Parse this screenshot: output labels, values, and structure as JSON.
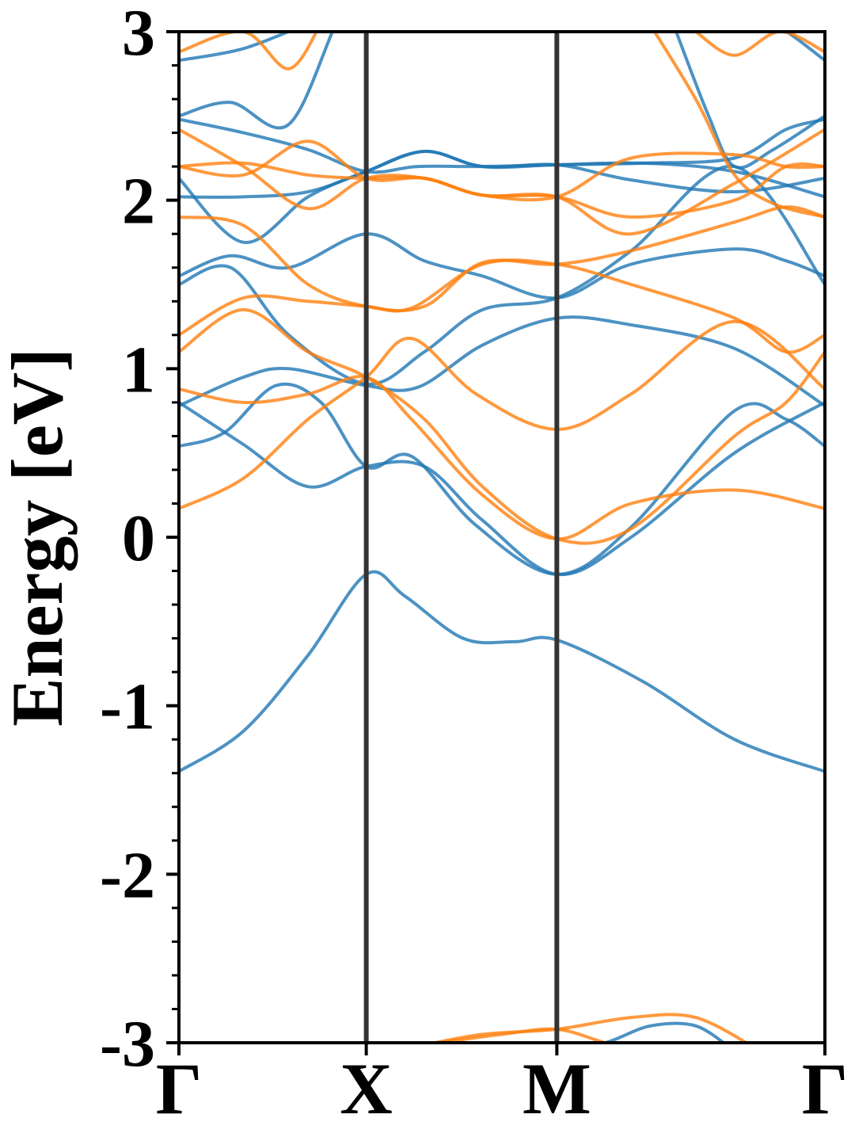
{
  "chart_data": {
    "type": "line",
    "title": "",
    "xlabel": "",
    "ylabel": "Energy [eV]",
    "ylim": [
      -3,
      3
    ],
    "yticks": [
      {
        "value": 3,
        "label": "3"
      },
      {
        "value": 2,
        "label": "2"
      },
      {
        "value": 1,
        "label": "1"
      },
      {
        "value": 0,
        "label": "0"
      },
      {
        "value": -1,
        "label": "-1"
      },
      {
        "value": -2,
        "label": "-2"
      },
      {
        "value": -3,
        "label": "-3"
      }
    ],
    "ytick_minor_step": 0.2,
    "kpath": [
      {
        "label": "Γ",
        "k": 0.0
      },
      {
        "label": "X",
        "k": 0.29
      },
      {
        "label": "M",
        "k": 0.585
      },
      {
        "label": "Γ",
        "k": 1.0
      }
    ],
    "grid": false,
    "series": [
      {
        "color": "#1f77b4",
        "bands": [
          [
            [
              0,
              -1.39
            ],
            [
              0.1,
              -1.15
            ],
            [
              0.2,
              -0.7
            ],
            [
              0.29,
              -0.22
            ],
            [
              0.35,
              -0.35
            ],
            [
              0.44,
              -0.6
            ],
            [
              0.52,
              -0.62
            ],
            [
              0.585,
              -0.61
            ],
            [
              0.72,
              -0.86
            ],
            [
              0.86,
              -1.2
            ],
            [
              1,
              -1.39
            ]
          ],
          [
            [
              0,
              0.54
            ],
            [
              0.07,
              0.62
            ],
            [
              0.15,
              0.9
            ],
            [
              0.22,
              0.8
            ],
            [
              0.29,
              0.42
            ],
            [
              0.36,
              0.48
            ],
            [
              0.46,
              0.07
            ],
            [
              0.585,
              -0.22
            ],
            [
              0.7,
              0.06
            ],
            [
              0.86,
              0.75
            ],
            [
              0.94,
              0.7
            ],
            [
              1,
              0.54
            ]
          ],
          [
            [
              0,
              0.8
            ],
            [
              0.1,
              0.55
            ],
            [
              0.2,
              0.3
            ],
            [
              0.29,
              0.42
            ],
            [
              0.38,
              0.42
            ],
            [
              0.47,
              0.1
            ],
            [
              0.585,
              -0.22
            ],
            [
              0.7,
              0.0
            ],
            [
              0.86,
              0.5
            ],
            [
              1,
              0.8
            ]
          ],
          [
            [
              0,
              0.78
            ],
            [
              0.1,
              0.95
            ],
            [
              0.17,
              1.0
            ],
            [
              0.29,
              0.9
            ],
            [
              0.37,
              0.89
            ],
            [
              0.47,
              1.14
            ],
            [
              0.585,
              1.3
            ],
            [
              0.7,
              1.26
            ],
            [
              0.86,
              1.12
            ],
            [
              1,
              0.78
            ]
          ],
          [
            [
              0,
              1.5
            ],
            [
              0.08,
              1.6
            ],
            [
              0.17,
              1.2
            ],
            [
              0.29,
              0.91
            ],
            [
              0.38,
              1.1
            ],
            [
              0.47,
              1.35
            ],
            [
              0.585,
              1.42
            ],
            [
              0.7,
              1.7
            ],
            [
              0.86,
              2.2
            ],
            [
              1,
              1.5
            ]
          ],
          [
            [
              0,
              1.55
            ],
            [
              0.08,
              1.67
            ],
            [
              0.17,
              1.6
            ],
            [
              0.29,
              1.8
            ],
            [
              0.38,
              1.64
            ],
            [
              0.47,
              1.55
            ],
            [
              0.585,
              1.42
            ],
            [
              0.7,
              1.62
            ],
            [
              0.86,
              1.71
            ],
            [
              0.94,
              1.64
            ],
            [
              1,
              1.55
            ]
          ],
          [
            [
              0,
              2.13
            ],
            [
              0.1,
              1.75
            ],
            [
              0.2,
              2.02
            ],
            [
              0.29,
              2.17
            ],
            [
              0.38,
              2.29
            ],
            [
              0.47,
              2.2
            ],
            [
              0.585,
              2.21
            ],
            [
              0.7,
              2.12
            ],
            [
              0.86,
              2.05
            ],
            [
              1,
              2.13
            ]
          ],
          [
            [
              0,
              2.02
            ],
            [
              0.1,
              2.02
            ],
            [
              0.2,
              2.05
            ],
            [
              0.29,
              2.17
            ],
            [
              0.38,
              2.29
            ],
            [
              0.47,
              2.2
            ],
            [
              0.585,
              2.21
            ],
            [
              0.72,
              2.22
            ],
            [
              0.86,
              2.17
            ],
            [
              1,
              2.02
            ]
          ],
          [
            [
              0,
              2.48
            ],
            [
              0.1,
              2.4
            ],
            [
              0.2,
              2.3
            ],
            [
              0.29,
              2.17
            ],
            [
              0.37,
              2.2
            ],
            [
              0.47,
              2.2
            ],
            [
              0.585,
              2.21
            ],
            [
              0.72,
              2.22
            ],
            [
              0.86,
              2.25
            ],
            [
              0.94,
              2.42
            ],
            [
              1,
              2.48
            ]
          ],
          [
            [
              0,
              2.5
            ],
            [
              0.08,
              2.58
            ],
            [
              0.17,
              2.45
            ],
            [
              0.25,
              3.1
            ],
            [
              0.3,
              3.3
            ]
          ],
          [
            [
              0,
              2.83
            ],
            [
              0.1,
              2.9
            ],
            [
              0.2,
              3.05
            ]
          ],
          [
            [
              0.76,
              3.1
            ],
            [
              0.82,
              2.5
            ],
            [
              0.86,
              2.2
            ],
            [
              0.92,
              2.3
            ],
            [
              1,
              2.5
            ]
          ],
          [
            [
              0.86,
              3.0
            ],
            [
              0.92,
              3.04
            ],
            [
              1,
              2.83
            ]
          ],
          [
            [
              0.585,
              -3.05
            ],
            [
              0.66,
              -3.0
            ],
            [
              0.73,
              -2.9
            ],
            [
              0.8,
              -2.9
            ],
            [
              0.86,
              -3.05
            ]
          ],
          [
            [
              0.46,
              -3.05
            ],
            [
              0.55,
              -3.0
            ],
            [
              0.62,
              -3.05
            ]
          ]
        ]
      },
      {
        "color": "#ff7f0e",
        "bands": [
          [
            [
              0,
              0.17
            ],
            [
              0.1,
              0.35
            ],
            [
              0.2,
              0.7
            ],
            [
              0.29,
              0.95
            ],
            [
              0.36,
              1.18
            ],
            [
              0.46,
              0.85
            ],
            [
              0.585,
              0.64
            ],
            [
              0.7,
              0.85
            ],
            [
              0.86,
              1.28
            ],
            [
              1,
              0.88
            ]
          ],
          [
            [
              0,
              0.88
            ],
            [
              0.1,
              0.8
            ],
            [
              0.2,
              0.85
            ],
            [
              0.29,
              0.95
            ],
            [
              0.36,
              0.7
            ],
            [
              0.47,
              0.25
            ],
            [
              0.585,
              -0.01
            ],
            [
              0.7,
              0.2
            ],
            [
              0.86,
              0.28
            ],
            [
              1,
              0.17
            ]
          ],
          [
            [
              0,
              1.1
            ],
            [
              0.1,
              1.35
            ],
            [
              0.2,
              1.1
            ],
            [
              0.29,
              0.95
            ],
            [
              0.38,
              0.7
            ],
            [
              0.47,
              0.3
            ],
            [
              0.585,
              -0.01
            ],
            [
              0.7,
              0.05
            ],
            [
              0.86,
              0.6
            ],
            [
              0.94,
              0.8
            ],
            [
              1,
              1.1
            ]
          ],
          [
            [
              0,
              1.2
            ],
            [
              0.1,
              1.42
            ],
            [
              0.2,
              1.4
            ],
            [
              0.29,
              1.37
            ],
            [
              0.36,
              1.36
            ],
            [
              0.47,
              1.62
            ],
            [
              0.585,
              1.62
            ],
            [
              0.7,
              1.5
            ],
            [
              0.86,
              1.3
            ],
            [
              0.94,
              1.1
            ],
            [
              1,
              1.2
            ]
          ],
          [
            [
              0,
              1.9
            ],
            [
              0.1,
              1.85
            ],
            [
              0.2,
              1.5
            ],
            [
              0.29,
              1.37
            ],
            [
              0.38,
              1.37
            ],
            [
              0.47,
              1.63
            ],
            [
              0.585,
              1.62
            ],
            [
              0.7,
              1.7
            ],
            [
              0.86,
              1.87
            ],
            [
              0.94,
              1.96
            ],
            [
              1,
              1.9
            ]
          ],
          [
            [
              0,
              2.2
            ],
            [
              0.1,
              2.22
            ],
            [
              0.2,
              2.15
            ],
            [
              0.29,
              2.13
            ],
            [
              0.38,
              2.13
            ],
            [
              0.47,
              2.03
            ],
            [
              0.585,
              2.02
            ],
            [
              0.7,
              1.9
            ],
            [
              0.86,
              2.0
            ],
            [
              0.94,
              2.2
            ],
            [
              1,
              2.2
            ]
          ],
          [
            [
              0,
              2.2
            ],
            [
              0.1,
              2.15
            ],
            [
              0.2,
              2.35
            ],
            [
              0.29,
              2.13
            ],
            [
              0.38,
              2.13
            ],
            [
              0.47,
              2.03
            ],
            [
              0.585,
              2.02
            ],
            [
              0.7,
              2.25
            ],
            [
              0.86,
              2.27
            ],
            [
              0.94,
              2.2
            ],
            [
              1,
              2.2
            ]
          ],
          [
            [
              0,
              2.42
            ],
            [
              0.1,
              2.2
            ],
            [
              0.2,
              1.95
            ],
            [
              0.29,
              2.13
            ],
            [
              0.38,
              2.13
            ],
            [
              0.47,
              2.03
            ],
            [
              0.585,
              2.02
            ],
            [
              0.7,
              1.8
            ],
            [
              0.86,
              2.1
            ],
            [
              1,
              2.42
            ]
          ],
          [
            [
              0,
              2.88
            ],
            [
              0.1,
              3.0
            ],
            [
              0.17,
              2.78
            ],
            [
              0.22,
              3.05
            ]
          ],
          [
            [
              0.72,
              3.1
            ],
            [
              0.8,
              2.6
            ],
            [
              0.86,
              2.15
            ],
            [
              0.92,
              1.98
            ],
            [
              1,
              1.9
            ]
          ],
          [
            [
              0.8,
              3.0
            ],
            [
              0.86,
              2.86
            ],
            [
              0.93,
              3.0
            ],
            [
              1,
              2.88
            ]
          ],
          [
            [
              0.24,
              -3.05
            ],
            [
              0.29,
              -3.0
            ],
            [
              0.36,
              -3.02
            ],
            [
              0.47,
              -2.95
            ],
            [
              0.585,
              -2.92
            ],
            [
              0.7,
              -2.85
            ],
            [
              0.8,
              -2.85
            ],
            [
              0.9,
              -3.05
            ]
          ],
          [
            [
              0.29,
              -3.05
            ],
            [
              0.4,
              -3.0
            ],
            [
              0.5,
              -2.95
            ],
            [
              0.585,
              -2.92
            ],
            [
              0.66,
              -3.0
            ],
            [
              0.72,
              -3.05
            ]
          ]
        ]
      }
    ]
  }
}
